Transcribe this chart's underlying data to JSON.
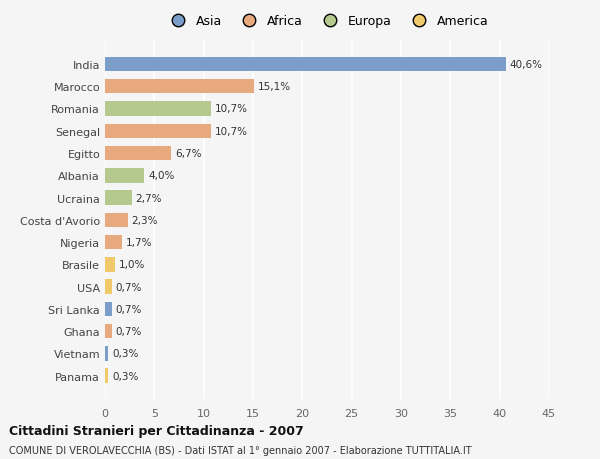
{
  "countries": [
    "India",
    "Marocco",
    "Romania",
    "Senegal",
    "Egitto",
    "Albania",
    "Ucraina",
    "Costa d'Avorio",
    "Nigeria",
    "Brasile",
    "USA",
    "Sri Lanka",
    "Ghana",
    "Vietnam",
    "Panama"
  ],
  "values": [
    40.6,
    15.1,
    10.7,
    10.7,
    6.7,
    4.0,
    2.7,
    2.3,
    1.7,
    1.0,
    0.7,
    0.7,
    0.7,
    0.3,
    0.3
  ],
  "labels": [
    "40,6%",
    "15,1%",
    "10,7%",
    "10,7%",
    "6,7%",
    "4,0%",
    "2,7%",
    "2,3%",
    "1,7%",
    "1,0%",
    "0,7%",
    "0,7%",
    "0,7%",
    "0,3%",
    "0,3%"
  ],
  "continents": [
    "Asia",
    "Africa",
    "Europa",
    "Africa",
    "Africa",
    "Europa",
    "Europa",
    "Africa",
    "Africa",
    "America",
    "America",
    "Asia",
    "Africa",
    "Asia",
    "America"
  ],
  "colors": {
    "Asia": "#7b9dc9",
    "Africa": "#e8a97e",
    "Europa": "#b5c98e",
    "America": "#f0c96b"
  },
  "title": "Cittadini Stranieri per Cittadinanza - 2007",
  "subtitle": "COMUNE DI VEROLAVECCHIA (BS) - Dati ISTAT al 1° gennaio 2007 - Elaborazione TUTTITALIA.IT",
  "xlim": [
    0,
    45
  ],
  "xticks": [
    0,
    5,
    10,
    15,
    20,
    25,
    30,
    35,
    40,
    45
  ],
  "background_color": "#f5f5f5",
  "grid_color": "#ffffff",
  "bar_height": 0.65
}
